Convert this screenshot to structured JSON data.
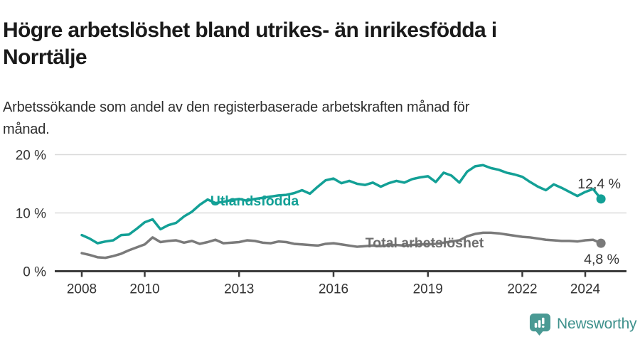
{
  "header": {
    "title_lines": [
      "Högre arbetslöshet bland utrikes- än inrikesfödda i",
      "Norrtälje"
    ],
    "subtitle_lines": [
      "Arbetssökande som andel av den registerbaserade arbetskraften månad för",
      "månad."
    ]
  },
  "chart_data": {
    "type": "line",
    "title": "Högre arbetslöshet bland utrikes- än inrikesfödda i Norrtälje",
    "subtitle": "Arbetssökande som andel av den registerbaserade arbetskraften månad för månad.",
    "xlabel": "",
    "ylabel": "",
    "ylim": [
      0,
      20
    ],
    "xlim": [
      2008,
      2025.3
    ],
    "grid": "horizontal",
    "legend": "inline-labels",
    "x": [
      2008.0,
      2008.25,
      2008.5,
      2008.75,
      2009.0,
      2009.25,
      2009.5,
      2009.75,
      2010.0,
      2010.25,
      2010.5,
      2010.75,
      2011.0,
      2011.25,
      2011.5,
      2011.75,
      2012.0,
      2012.25,
      2012.5,
      2012.75,
      2013.0,
      2013.25,
      2013.5,
      2013.75,
      2014.0,
      2014.25,
      2014.5,
      2014.75,
      2015.0,
      2015.25,
      2015.5,
      2015.75,
      2016.0,
      2016.25,
      2016.5,
      2016.75,
      2017.0,
      2017.25,
      2017.5,
      2017.75,
      2018.0,
      2018.25,
      2018.5,
      2018.75,
      2019.0,
      2019.25,
      2019.5,
      2019.75,
      2020.0,
      2020.25,
      2020.5,
      2020.75,
      2021.0,
      2021.25,
      2021.5,
      2021.75,
      2022.0,
      2022.25,
      2022.5,
      2022.75,
      2023.0,
      2023.25,
      2023.5,
      2023.75,
      2024.0,
      2024.25,
      2024.5
    ],
    "series": [
      {
        "name": "Utlandsfödda",
        "color": "#13A096",
        "end_label": "12,4 %",
        "end_value": 12.4,
        "values": [
          6.2,
          5.6,
          4.8,
          5.1,
          5.3,
          6.2,
          6.3,
          7.3,
          8.4,
          8.9,
          7.2,
          7.9,
          8.3,
          9.4,
          10.2,
          11.4,
          12.3,
          11.7,
          11.9,
          12.2,
          12.4,
          12.1,
          12.4,
          12.6,
          12.8,
          13.0,
          13.1,
          13.4,
          13.9,
          13.3,
          14.5,
          15.6,
          15.9,
          15.1,
          15.5,
          15.0,
          14.8,
          15.2,
          14.5,
          15.1,
          15.5,
          15.2,
          15.8,
          16.1,
          16.3,
          15.3,
          16.9,
          16.4,
          15.2,
          17.1,
          18.0,
          18.2,
          17.7,
          17.4,
          16.9,
          16.6,
          16.2,
          15.3,
          14.5,
          13.9,
          14.9,
          14.3,
          13.6,
          12.9,
          13.6,
          14.1,
          12.4
        ]
      },
      {
        "name": "Total arbetslöshet",
        "color": "#7A7A7A",
        "end_label": "4,8 %",
        "end_value": 4.8,
        "values": [
          3.1,
          2.8,
          2.4,
          2.3,
          2.6,
          3.0,
          3.6,
          4.1,
          4.6,
          5.8,
          5.0,
          5.2,
          5.3,
          4.9,
          5.2,
          4.7,
          5.0,
          5.4,
          4.8,
          4.9,
          5.0,
          5.3,
          5.2,
          4.9,
          4.8,
          5.1,
          5.0,
          4.7,
          4.6,
          4.5,
          4.4,
          4.7,
          4.8,
          4.6,
          4.4,
          4.2,
          4.3,
          4.4,
          4.3,
          4.5,
          4.5,
          4.4,
          4.5,
          4.6,
          4.6,
          4.7,
          4.9,
          5.1,
          5.3,
          6.0,
          6.4,
          6.6,
          6.6,
          6.5,
          6.3,
          6.1,
          5.9,
          5.8,
          5.6,
          5.4,
          5.3,
          5.2,
          5.2,
          5.1,
          5.3,
          5.4,
          4.8
        ]
      }
    ],
    "x_ticks": [
      {
        "value": 2008,
        "label": "2008"
      },
      {
        "value": 2010,
        "label": "2010"
      },
      {
        "value": 2013,
        "label": "2013"
      },
      {
        "value": 2016,
        "label": "2016"
      },
      {
        "value": 2019,
        "label": "2019"
      },
      {
        "value": 2022,
        "label": "2022"
      },
      {
        "value": 2024,
        "label": "2024"
      }
    ],
    "y_ticks": [
      {
        "value": 0,
        "label": "0 %"
      },
      {
        "value": 10,
        "label": "10 %"
      },
      {
        "value": 20,
        "label": "20 %"
      }
    ]
  },
  "colors": {
    "accent_teal": "#13A096",
    "line_gray": "#7A7A7A",
    "axis": "#3B3B3B",
    "gridline": "#DADADA",
    "text": "#333333"
  },
  "footer": {
    "brand": "Newsworthy",
    "logo_icon": "bar-chart-speech-bubble-icon",
    "brand_color": "#3E918C"
  }
}
